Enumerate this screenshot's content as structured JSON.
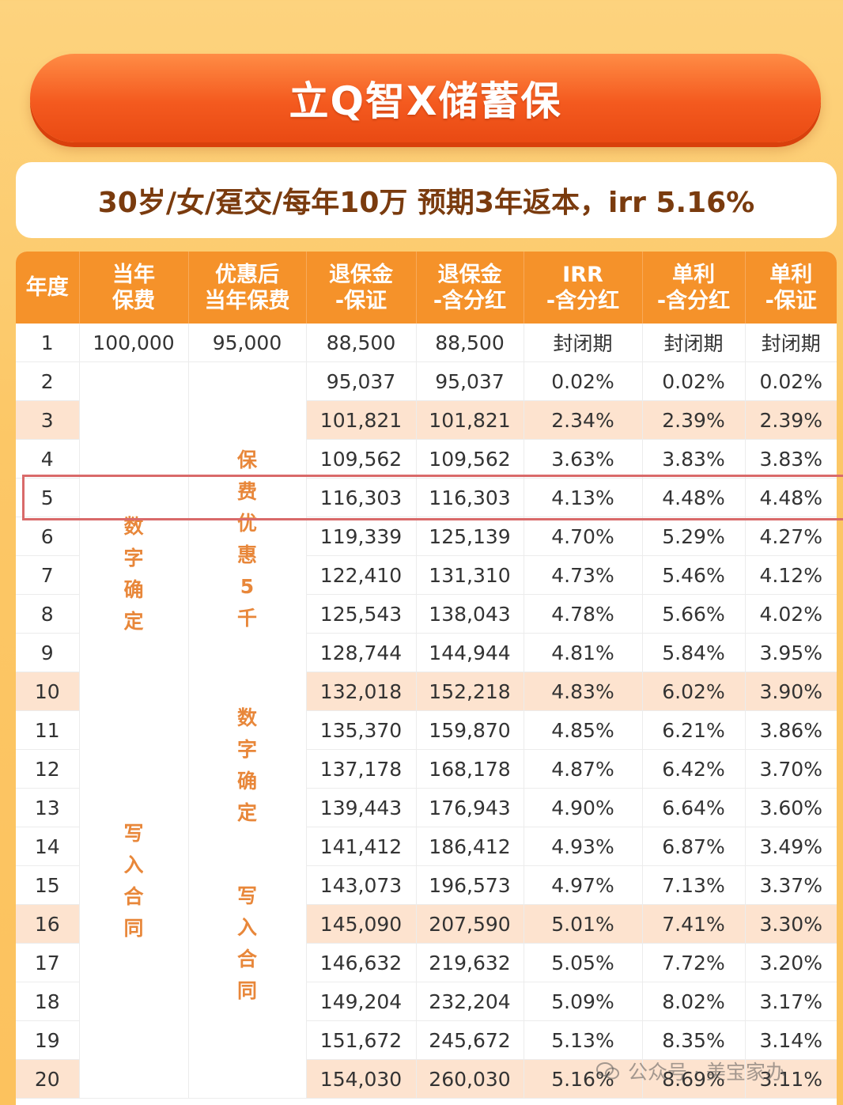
{
  "title": "立Q智X储蓄保",
  "subtitle": "30岁/女/趸交/每年10万  预期3年返本，irr 5.16%",
  "headers": [
    [
      "年度"
    ],
    [
      "当年",
      "保费"
    ],
    [
      "优惠后",
      "当年保费"
    ],
    [
      "退保金",
      "-保证"
    ],
    [
      "退保金",
      "-含分红"
    ],
    [
      "IRR",
      "-含分红"
    ],
    [
      "单利",
      "-含分红"
    ],
    [
      "单利",
      "-保证"
    ]
  ],
  "first_row": [
    "1",
    "100,000",
    "95,000",
    "88,500",
    "88,500",
    "封闭期",
    "封闭期",
    "封闭期"
  ],
  "rows": [
    [
      "2",
      "95,037",
      "95,037",
      "0.02%",
      "0.02%",
      "0.02%"
    ],
    [
      "3",
      "101,821",
      "101,821",
      "2.34%",
      "2.39%",
      "2.39%"
    ],
    [
      "4",
      "109,562",
      "109,562",
      "3.63%",
      "3.83%",
      "3.83%"
    ],
    [
      "5",
      "116,303",
      "116,303",
      "4.13%",
      "4.48%",
      "4.48%"
    ],
    [
      "6",
      "119,339",
      "125,139",
      "4.70%",
      "5.29%",
      "4.27%"
    ],
    [
      "7",
      "122,410",
      "131,310",
      "4.73%",
      "5.46%",
      "4.12%"
    ],
    [
      "8",
      "125,543",
      "138,043",
      "4.78%",
      "5.66%",
      "4.02%"
    ],
    [
      "9",
      "128,744",
      "144,944",
      "4.81%",
      "5.84%",
      "3.95%"
    ],
    [
      "10",
      "132,018",
      "152,218",
      "4.83%",
      "6.02%",
      "3.90%"
    ],
    [
      "11",
      "135,370",
      "159,870",
      "4.85%",
      "6.21%",
      "3.86%"
    ],
    [
      "12",
      "137,178",
      "168,178",
      "4.87%",
      "6.42%",
      "3.70%"
    ],
    [
      "13",
      "139,443",
      "176,943",
      "4.90%",
      "6.64%",
      "3.60%"
    ],
    [
      "14",
      "141,412",
      "186,412",
      "4.93%",
      "6.87%",
      "3.49%"
    ],
    [
      "15",
      "143,073",
      "196,573",
      "4.97%",
      "7.13%",
      "3.37%"
    ],
    [
      "16",
      "145,090",
      "207,590",
      "5.01%",
      "7.41%",
      "3.30%"
    ],
    [
      "17",
      "146,632",
      "219,632",
      "5.05%",
      "7.72%",
      "3.20%"
    ],
    [
      "18",
      "149,204",
      "232,204",
      "5.09%",
      "8.02%",
      "3.17%"
    ],
    [
      "19",
      "151,672",
      "245,672",
      "5.13%",
      "8.35%",
      "3.14%"
    ],
    [
      "20",
      "154,030",
      "260,030",
      "5.16%",
      "8.69%",
      "3.11%"
    ]
  ],
  "highlight_years": [
    "3",
    "10",
    "16",
    "20"
  ],
  "col1_notes": [
    [
      "数",
      "字",
      "确",
      "定"
    ],
    [
      "写",
      "入",
      "合",
      "同"
    ]
  ],
  "col2_notes": [
    [
      "保",
      "费",
      "优",
      "惠",
      "5",
      "千"
    ],
    [
      "数",
      "字",
      "确",
      "定"
    ],
    [
      "写",
      "入",
      "合",
      "同"
    ]
  ],
  "watermark": "公众号 · 美宝家办",
  "colors": {
    "header_bg": "#f5922a",
    "banner": "#f45a1f",
    "highlight": "#fde3cf",
    "note": "#e8873a"
  }
}
